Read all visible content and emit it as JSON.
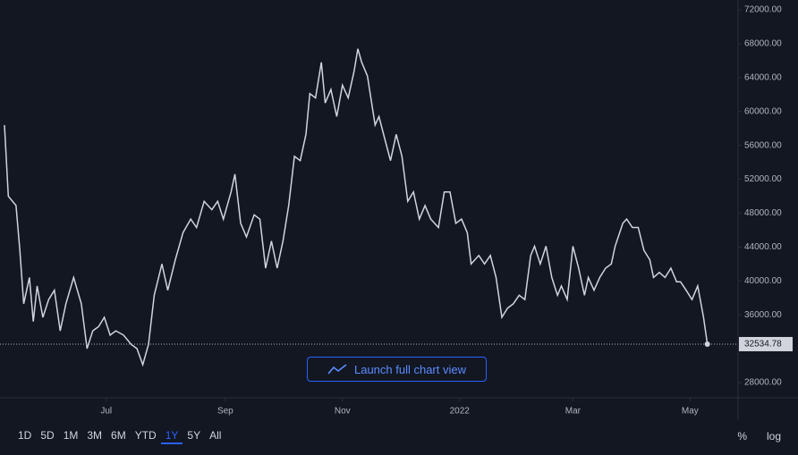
{
  "chart_data": {
    "type": "line",
    "x": [
      0,
      2,
      6,
      8,
      10,
      13,
      15,
      17,
      20,
      23,
      26,
      29,
      32,
      36,
      40,
      43,
      46,
      49,
      52,
      55,
      58,
      62,
      66,
      69,
      72,
      75,
      78,
      82,
      85,
      89,
      93,
      97,
      100,
      104,
      108,
      111,
      114,
      118,
      120,
      123,
      126,
      130,
      133,
      136,
      139,
      142,
      145,
      148,
      151,
      154,
      157,
      159,
      162,
      165,
      167,
      170,
      173,
      176,
      179,
      182,
      184,
      186,
      189,
      193,
      195,
      198,
      201,
      204,
      207,
      210,
      213,
      216,
      219,
      222,
      226,
      229,
      232,
      235,
      238,
      241,
      243,
      247,
      250,
      253,
      256,
      259,
      262,
      265,
      268,
      271,
      274,
      276,
      279,
      282,
      285,
      288,
      290,
      293,
      296,
      299,
      302,
      304,
      307,
      310,
      313,
      316,
      318,
      322,
      324,
      327,
      330,
      333,
      336,
      338,
      341,
      344,
      347,
      350,
      352,
      355,
      358,
      361,
      364,
      366
    ],
    "series": [
      {
        "color": "#d1d4dc",
        "values": [
          58400,
          50000,
          48900,
          43600,
          37300,
          40400,
          35200,
          39400,
          35700,
          37800,
          38900,
          34100,
          37300,
          40400,
          37300,
          32000,
          34100,
          34600,
          35700,
          33600,
          34100,
          33600,
          32500,
          32000,
          30100,
          32500,
          38300,
          42000,
          38900,
          42500,
          45700,
          47300,
          46300,
          49400,
          48400,
          49400,
          47300,
          50500,
          52600,
          46800,
          45200,
          47800,
          47300,
          41500,
          44700,
          41500,
          44700,
          48900,
          54700,
          54200,
          57300,
          62100,
          61600,
          65800,
          61000,
          62600,
          59400,
          63100,
          61600,
          64700,
          67400,
          65800,
          64200,
          58400,
          59400,
          56800,
          54200,
          57300,
          54700,
          49400,
          50500,
          47300,
          48900,
          47300,
          46300,
          50500,
          50500,
          46800,
          47300,
          45700,
          42000,
          43000,
          42000,
          43000,
          40400,
          35700,
          36800,
          37300,
          38300,
          37800,
          43000,
          44100,
          42000,
          44100,
          40400,
          38300,
          39400,
          37800,
          44100,
          41500,
          38300,
          40400,
          38900,
          40400,
          41500,
          42000,
          44100,
          46800,
          47300,
          46300,
          46300,
          43600,
          42500,
          40400,
          41000,
          40400,
          41500,
          39900,
          39900,
          38900,
          37800,
          39400,
          35700,
          32534.78
        ]
      }
    ],
    "xlim": [
      0,
      382
    ],
    "ylim": [
      26200,
      73160
    ],
    "xticks": [
      {
        "value": 53,
        "label": "Jul"
      },
      {
        "value": 115,
        "label": "Sep"
      },
      {
        "value": 176,
        "label": "Nov"
      },
      {
        "value": 237,
        "label": "2022"
      },
      {
        "value": 296,
        "label": "Mar"
      },
      {
        "value": 357,
        "label": "May"
      }
    ],
    "yticks": [
      {
        "value": 28000,
        "label": "28000.00"
      },
      {
        "value": 32000,
        "label": "32000.00"
      },
      {
        "value": 36000,
        "label": "36000.00"
      },
      {
        "value": 40000,
        "label": "40000.00"
      },
      {
        "value": 44000,
        "label": "44000.00"
      },
      {
        "value": 48000,
        "label": "48000.00"
      },
      {
        "value": 52000,
        "label": "52000.00"
      },
      {
        "value": 56000,
        "label": "56000.00"
      },
      {
        "value": 60000,
        "label": "60000.00"
      },
      {
        "value": 64000,
        "label": "64000.00"
      },
      {
        "value": 68000,
        "label": "68000.00"
      },
      {
        "value": 72000,
        "label": "72000.00"
      }
    ],
    "grid": false
  },
  "launch_button": "Launch full chart view",
  "toolbar": {
    "ranges": [
      "1D",
      "5D",
      "1M",
      "3M",
      "6M",
      "YTD",
      "1Y",
      "5Y",
      "All"
    ],
    "selected": 6,
    "right": [
      "%",
      "log"
    ]
  }
}
